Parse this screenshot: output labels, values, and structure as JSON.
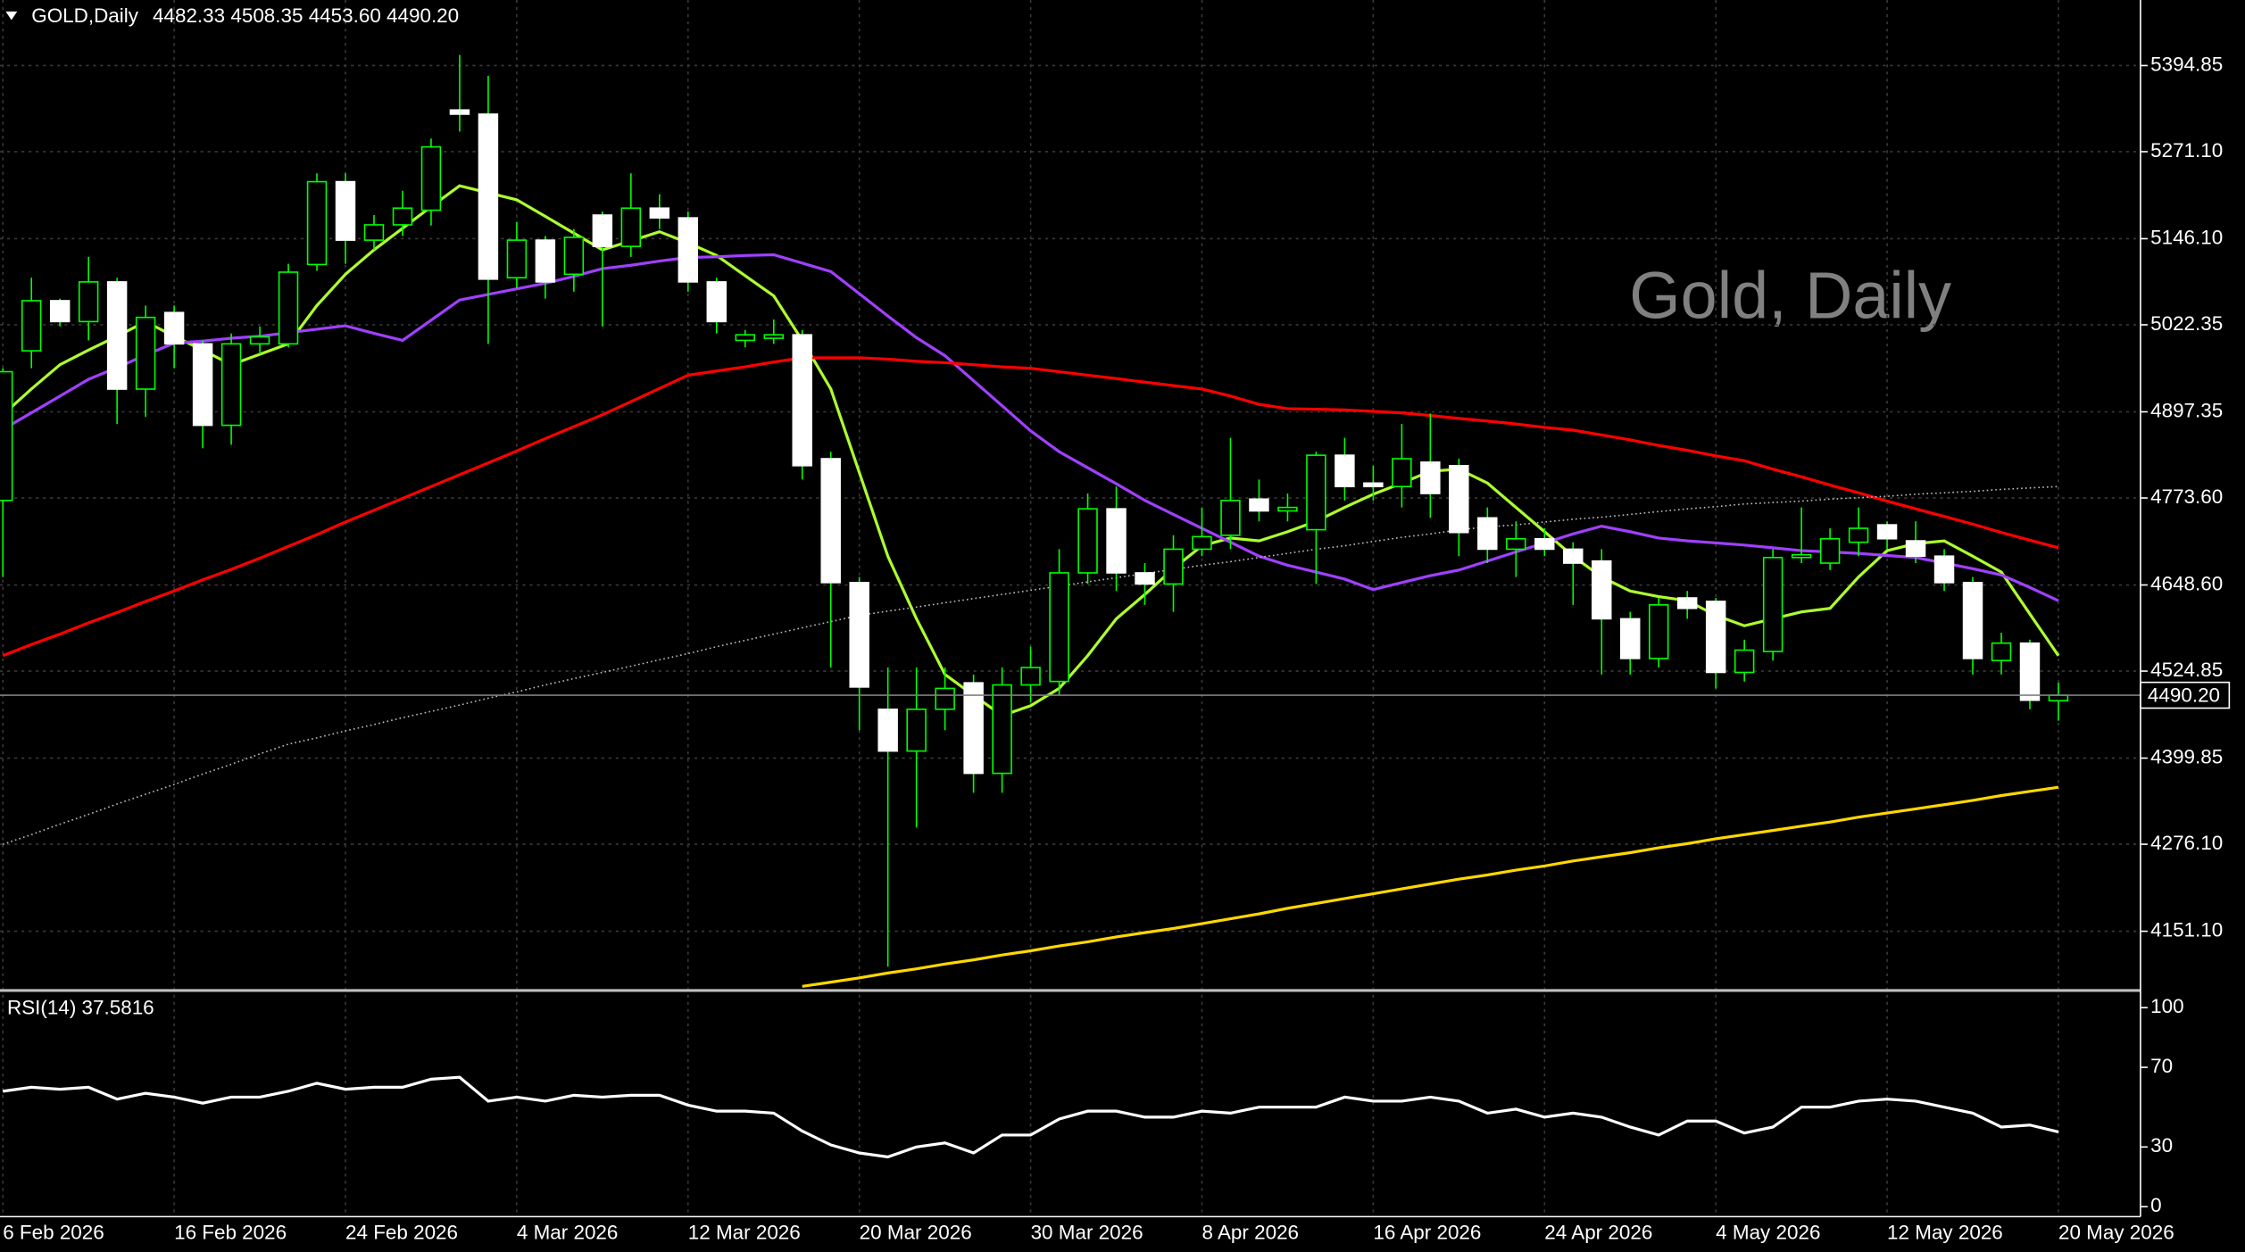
{
  "chart_data": [
    {
      "type": "candlestick",
      "title": "GOLD,Daily",
      "header_values": "4482.33 4508.35 4453.60 4490.20",
      "watermark": "Gold, Daily",
      "categories": [
        "6 Feb 2026",
        null,
        null,
        null,
        null,
        null,
        "16 Feb 2026",
        null,
        null,
        null,
        null,
        null,
        "24 Feb 2026",
        null,
        null,
        null,
        null,
        null,
        "4 Mar 2026",
        null,
        null,
        null,
        null,
        null,
        "12 Mar 2026",
        null,
        null,
        null,
        null,
        null,
        "20 Mar 2026",
        null,
        null,
        null,
        null,
        null,
        "30 Mar 2026",
        null,
        null,
        null,
        null,
        null,
        "8 Apr 2026",
        null,
        null,
        null,
        null,
        null,
        "16 Apr 2026",
        null,
        null,
        null,
        null,
        null,
        "24 Apr 2026",
        null,
        null,
        null,
        null,
        null,
        "4 May 2026",
        null,
        null,
        null,
        null,
        null,
        "12 May 2026",
        null,
        null,
        null,
        null,
        null,
        "20 May 2026"
      ],
      "open": [
        4770,
        4985,
        5057,
        5027,
        5084,
        4930,
        5040,
        4995,
        4878,
        4995,
        4995,
        5109,
        5228,
        5144,
        5166,
        5187,
        5331,
        5325,
        5090,
        5144,
        5095,
        5180,
        5135,
        5190,
        5176,
        5084,
        5000,
        5003,
        5008,
        4830,
        4652,
        4470,
        4410,
        4470,
        4508,
        4378,
        4505,
        4510,
        4666,
        4758,
        4666,
        4650,
        4700,
        4720,
        4772,
        4755,
        4728,
        4835,
        4795,
        4790,
        4825,
        4820,
        4745,
        4700,
        4715,
        4700,
        4683,
        4600,
        4543,
        4630,
        4625,
        4523,
        4553,
        4688,
        4680,
        4710,
        4735,
        4712,
        4690,
        4652,
        4540,
        4565,
        4482.33
      ],
      "high": [
        4960,
        5090,
        5060,
        5120,
        5090,
        5050,
        5050,
        5000,
        5010,
        5020,
        5110,
        5240,
        5240,
        5180,
        5215,
        5290,
        5410,
        5380,
        5170,
        5150,
        5160,
        5185,
        5240,
        5210,
        5185,
        5090,
        5015,
        5030,
        5015,
        4840,
        4660,
        4530,
        4530,
        4530,
        4520,
        4530,
        4560,
        4700,
        4780,
        4790,
        4680,
        4720,
        4760,
        4860,
        4800,
        4780,
        4840,
        4860,
        4820,
        4880,
        4895,
        4830,
        4760,
        4740,
        4730,
        4710,
        4700,
        4610,
        4630,
        4640,
        4630,
        4570,
        4700,
        4760,
        4730,
        4760,
        4740,
        4740,
        4700,
        4660,
        4580,
        4570,
        4508.35
      ],
      "low": [
        4660,
        4960,
        5020,
        5000,
        4880,
        4890,
        4960,
        4845,
        4850,
        4980,
        4990,
        5100,
        5110,
        5130,
        5150,
        5165,
        5300,
        4995,
        5075,
        5060,
        5070,
        5020,
        5120,
        5160,
        5070,
        5010,
        4990,
        4995,
        4800,
        4530,
        4440,
        4100,
        4300,
        4440,
        4350,
        4350,
        4480,
        4490,
        4650,
        4640,
        4620,
        4610,
        4690,
        4700,
        4740,
        4740,
        4650,
        4770,
        4770,
        4760,
        4745,
        4690,
        4680,
        4660,
        4690,
        4620,
        4520,
        4520,
        4530,
        4600,
        4500,
        4510,
        4540,
        4680,
        4670,
        4690,
        4700,
        4680,
        4640,
        4520,
        4520,
        4470,
        4453.6
      ],
      "close": [
        4955,
        5057,
        5027,
        5084,
        4930,
        5033,
        4995,
        4878,
        4995,
        5005,
        5098,
        5228,
        5144,
        5166,
        5190,
        5278,
        5325,
        5088,
        5144,
        5084,
        5148,
        5135,
        5190,
        5176,
        5084,
        5027,
        5008,
        5008,
        4820,
        4652,
        4502,
        4410,
        4470,
        4500,
        4378,
        4505,
        4530,
        4666,
        4758,
        4666,
        4650,
        4700,
        4718,
        4770,
        4755,
        4760,
        4835,
        4790,
        4790,
        4830,
        4780,
        4724,
        4700,
        4715,
        4700,
        4680,
        4600,
        4543,
        4620,
        4615,
        4523,
        4555,
        4688,
        4692,
        4715,
        4730,
        4715,
        4690,
        4652,
        4543,
        4565,
        4483,
        4490.2
      ],
      "up_color": "#00ff00",
      "down_color": "#ffffff",
      "lines": [
        {
          "color": "#adff2f",
          "style": "solid",
          "values": [
            4893,
            4930,
            4965,
            4986,
            5006,
            5027,
            5006,
            4986,
            4965,
            4980,
            4995,
            5050,
            5095,
            5130,
            5161,
            5192,
            5222,
            5212,
            5202,
            5178,
            5154,
            5130,
            5143,
            5156,
            5140,
            5122,
            5093,
            5064,
            5000,
            4930,
            4810,
            4690,
            4600,
            4520,
            4490,
            4461,
            4475,
            4500,
            4547,
            4600,
            4635,
            4672,
            4705,
            4716,
            4712,
            4725,
            4740,
            4760,
            4779,
            4795,
            4812,
            4815,
            4795,
            4760,
            4725,
            4690,
            4660,
            4640,
            4632,
            4626,
            4605,
            4590,
            4600,
            4610,
            4615,
            4660,
            4698,
            4708,
            4712,
            4690,
            4667,
            4607,
            4547
          ]
        },
        {
          "color": "#a040ff",
          "style": "solid",
          "values": [
            4872,
            4896,
            4920,
            4944,
            4961,
            4979,
            4996,
            4999,
            5003,
            5006,
            5011,
            5016,
            5021,
            5010,
            5000,
            5029,
            5058,
            5066,
            5074,
            5082,
            5092,
            5103,
            5108,
            5114,
            5119,
            5120,
            5122,
            5123,
            5111,
            5099,
            5067,
            5035,
            5004,
            4978,
            4942,
            4906,
            4870,
            4840,
            4817,
            4794,
            4770,
            4750,
            4730,
            4710,
            4690,
            4677,
            4667,
            4657,
            4642,
            4652,
            4662,
            4670,
            4683,
            4696,
            4709,
            4722,
            4733,
            4725,
            4716,
            4712,
            4709,
            4706,
            4702,
            4698,
            4696,
            4694,
            4691,
            4688,
            4680,
            4672,
            4663,
            4645,
            4626
          ]
        },
        {
          "color": "#ff0000",
          "style": "solid",
          "values": [
            4547,
            4563,
            4578,
            4594,
            4609,
            4625,
            4640,
            4656,
            4671,
            4687,
            4704,
            4721,
            4739,
            4756,
            4773,
            4790,
            4807,
            4824,
            4841,
            4859,
            4876,
            4893,
            4912,
            4931,
            4950,
            4956,
            4962,
            4969,
            4975,
            4975,
            4975,
            4973,
            4970,
            4968,
            4965,
            4962,
            4960,
            4955,
            4950,
            4945,
            4940,
            4935,
            4930,
            4920,
            4908,
            4902,
            4901,
            4900,
            4898,
            4896,
            4892,
            4888,
            4884,
            4880,
            4875,
            4871,
            4864,
            4857,
            4849,
            4842,
            4834,
            4827,
            4815,
            4804,
            4792,
            4781,
            4769,
            4758,
            4747,
            4736,
            4724,
            4713,
            4702
          ]
        },
        {
          "color": "#c0c0c0",
          "style": "dotted",
          "values": [
            4276,
            4290,
            4305,
            4319,
            4334,
            4348,
            4362,
            4377,
            4391,
            4406,
            4420,
            4429,
            4439,
            4448,
            4458,
            4467,
            4476,
            4486,
            4495,
            4505,
            4514,
            4523,
            4532,
            4541,
            4550,
            4560,
            4569,
            4578,
            4587,
            4596,
            4605,
            4611,
            4617,
            4623,
            4629,
            4635,
            4641,
            4647,
            4653,
            4659,
            4665,
            4671,
            4677,
            4682,
            4688,
            4694,
            4700,
            4705,
            4711,
            4717,
            4722,
            4728,
            4732,
            4735,
            4739,
            4743,
            4746,
            4750,
            4754,
            4758,
            4761,
            4765,
            4767,
            4769,
            4772,
            4774,
            4776,
            4779,
            4781,
            4783,
            4786,
            4788,
            4790
          ]
        },
        {
          "color": "#ffd700",
          "style": "solid",
          "values": [
            null,
            null,
            null,
            null,
            null,
            null,
            null,
            null,
            null,
            null,
            null,
            null,
            null,
            null,
            null,
            null,
            null,
            null,
            null,
            null,
            null,
            null,
            null,
            null,
            null,
            null,
            null,
            null,
            4072,
            4078,
            4084,
            4091,
            4097,
            4104,
            4110,
            4117,
            4123,
            4130,
            4136,
            4143,
            4149,
            4155,
            4162,
            4169,
            4176,
            4184,
            4191,
            4198,
            4205,
            4212,
            4219,
            4226,
            4232,
            4239,
            4245,
            4252,
            4258,
            4264,
            4271,
            4277,
            4284,
            4290,
            4296,
            4302,
            4308,
            4315,
            4321,
            4327,
            4333,
            4339,
            4346,
            4352,
            4358
          ]
        }
      ],
      "ylim": [
        4066,
        5489
      ],
      "yticks": [
        5394.85,
        {
          "value": 5271.1,
          "label": "5271.10"
        },
        {
          "value": 5146.1,
          "label": "5146.10"
        },
        5022.35,
        4897.35,
        {
          "value": 4773.6,
          "label": "4773.60"
        },
        {
          "value": 4648.6,
          "label": "4648.60"
        },
        4524.85,
        4399.85,
        {
          "value": 4276.1,
          "label": "4276.10"
        },
        {
          "value": 4151.1,
          "label": "4151.10"
        }
      ],
      "last_price": {
        "value": 4490.2,
        "label": "4490.20"
      },
      "grid": true
    },
    {
      "type": "line",
      "title": "RSI(14) 37.5816",
      "color": "#ffffff",
      "values": [
        58,
        60,
        59,
        60,
        54,
        57,
        55,
        52,
        55,
        55,
        58,
        62,
        59,
        60,
        60,
        64,
        65,
        53,
        55,
        53,
        56,
        55,
        56,
        56,
        51,
        48,
        48,
        47,
        38,
        31,
        27,
        25,
        30,
        32,
        27,
        36,
        36,
        44,
        48,
        48,
        45,
        45,
        48,
        47,
        50,
        50,
        50,
        55,
        53,
        53,
        55,
        53,
        47,
        49,
        45,
        47,
        45,
        40,
        36,
        43,
        43,
        37,
        40,
        50,
        50,
        53,
        54,
        53,
        50,
        47,
        40,
        41,
        37.58
      ],
      "ylim": [
        -5,
        108.6
      ],
      "yticks": [
        100,
        70,
        30,
        0
      ]
    }
  ]
}
